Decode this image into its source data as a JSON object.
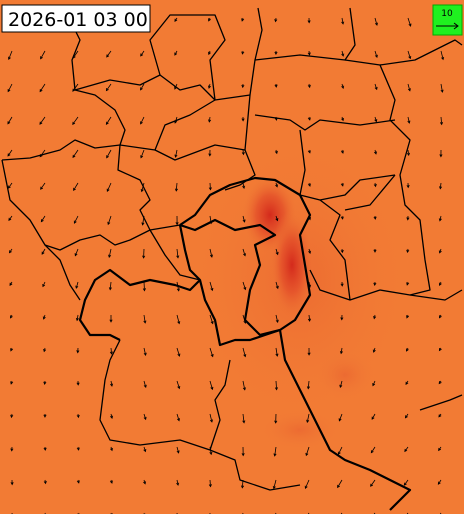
{
  "header": {
    "timestamp": "2026-01 03 00"
  },
  "legend": {
    "reference_label": "10"
  }
}
